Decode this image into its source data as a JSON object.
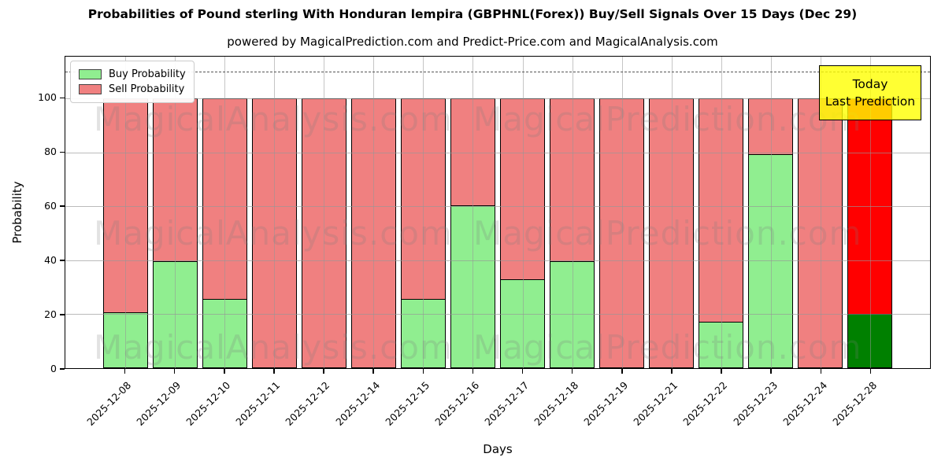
{
  "title": "Probabilities of Pound sterling With Honduran lempira (GBPHNL(Forex)) Buy/Sell Signals Over 15 Days (Dec 29)",
  "subtitle": "powered by MagicalPrediction.com and Predict-Price.com and MagicalAnalysis.com",
  "legend": {
    "buy_label": "Buy Probability",
    "sell_label": "Sell Probability"
  },
  "annotation": {
    "line1": "Today",
    "line2": "Last Prediction"
  },
  "axes": {
    "xlabel": "Days",
    "ylabel": "Probability",
    "yticks": [
      0,
      20,
      40,
      60,
      80,
      100
    ],
    "ymax": 115.5,
    "dashed_line_value": 110
  },
  "watermarks": {
    "left": "MagicalAnalysis.com",
    "right": "MagicalPrediction.com"
  },
  "colors": {
    "buy": "#90EE90",
    "sell": "#F08080",
    "buy_last": "#008000",
    "sell_last": "#FF0000",
    "edge": "#000000",
    "today_bg": "#FFFF00",
    "grid": "#999999",
    "dashed": "#555555"
  },
  "chart_data": {
    "type": "bar",
    "stacked": true,
    "title": "Probabilities of Pound sterling With Honduran lempira (GBPHNL(Forex)) Buy/Sell Signals Over 15 Days (Dec 29)",
    "xlabel": "Days",
    "ylabel": "Probability",
    "ylim": [
      0,
      115.5
    ],
    "grid": true,
    "legend_position": "upper-left",
    "dashed_threshold_line": 110,
    "categories": [
      "2025-12-08",
      "2025-12-09",
      "2025-12-10",
      "2025-12-11",
      "2025-12-12",
      "2025-12-14",
      "2025-12-15",
      "2025-12-16",
      "2025-12-17",
      "2025-12-18",
      "2025-12-19",
      "2025-12-21",
      "2025-12-22",
      "2025-12-23",
      "2025-12-24",
      "2025-12-28"
    ],
    "series": [
      {
        "name": "Buy Probability",
        "color": "#90EE90",
        "values": [
          20.5,
          39.5,
          25.5,
          0,
          0,
          0,
          25.5,
          60.5,
          33,
          39.5,
          0,
          0,
          17,
          79.5,
          0,
          20
        ]
      },
      {
        "name": "Sell Probability",
        "color": "#F08080",
        "values": [
          79.5,
          60.5,
          74.5,
          100,
          100,
          100,
          74.5,
          39.5,
          67,
          60.5,
          100,
          100,
          83,
          20.5,
          100,
          80
        ]
      }
    ],
    "last_bar_highlight": {
      "buy_color": "#008000",
      "sell_color": "#FF0000",
      "label": "Today Last Prediction"
    }
  }
}
